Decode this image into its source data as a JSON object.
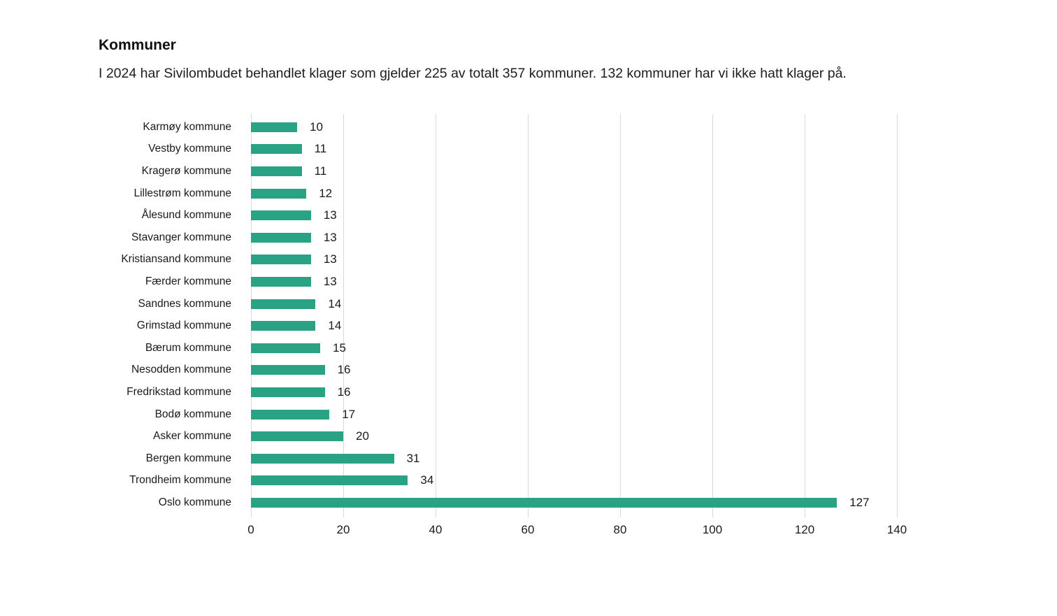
{
  "header": {
    "title": "Kommuner",
    "subtitle": "I 2024 har Sivilombudet behandlet klager som gjelder 225 av totalt 357 kommuner. 132 kommuner har vi ikke hatt klager på."
  },
  "chart_data": {
    "type": "bar",
    "orientation": "horizontal",
    "title": "Kommuner",
    "categories": [
      "Karmøy kommune",
      "Vestby kommune",
      "Kragerø kommune",
      "Lillestrøm kommune",
      "Ålesund kommune",
      "Stavanger kommune",
      "Kristiansand kommune",
      "Færder kommune",
      "Sandnes kommune",
      "Grimstad kommune",
      "Bærum kommune",
      "Nesodden kommune",
      "Fredrikstad kommune",
      "Bodø kommune",
      "Asker kommune",
      "Bergen kommune",
      "Trondheim kommune",
      "Oslo kommune"
    ],
    "values": [
      10,
      11,
      11,
      12,
      13,
      13,
      13,
      13,
      14,
      14,
      15,
      16,
      16,
      17,
      20,
      31,
      34,
      127
    ],
    "xlim": [
      0,
      140
    ],
    "x_ticks": [
      0,
      20,
      40,
      60,
      80,
      100,
      120,
      140
    ],
    "value_labels_shown": true,
    "grid": true,
    "legend": false,
    "colors": {
      "bar": "#2aa284",
      "gridline": "#d9d9d9",
      "text": "#1a1a1a",
      "background": "#ffffff"
    }
  }
}
